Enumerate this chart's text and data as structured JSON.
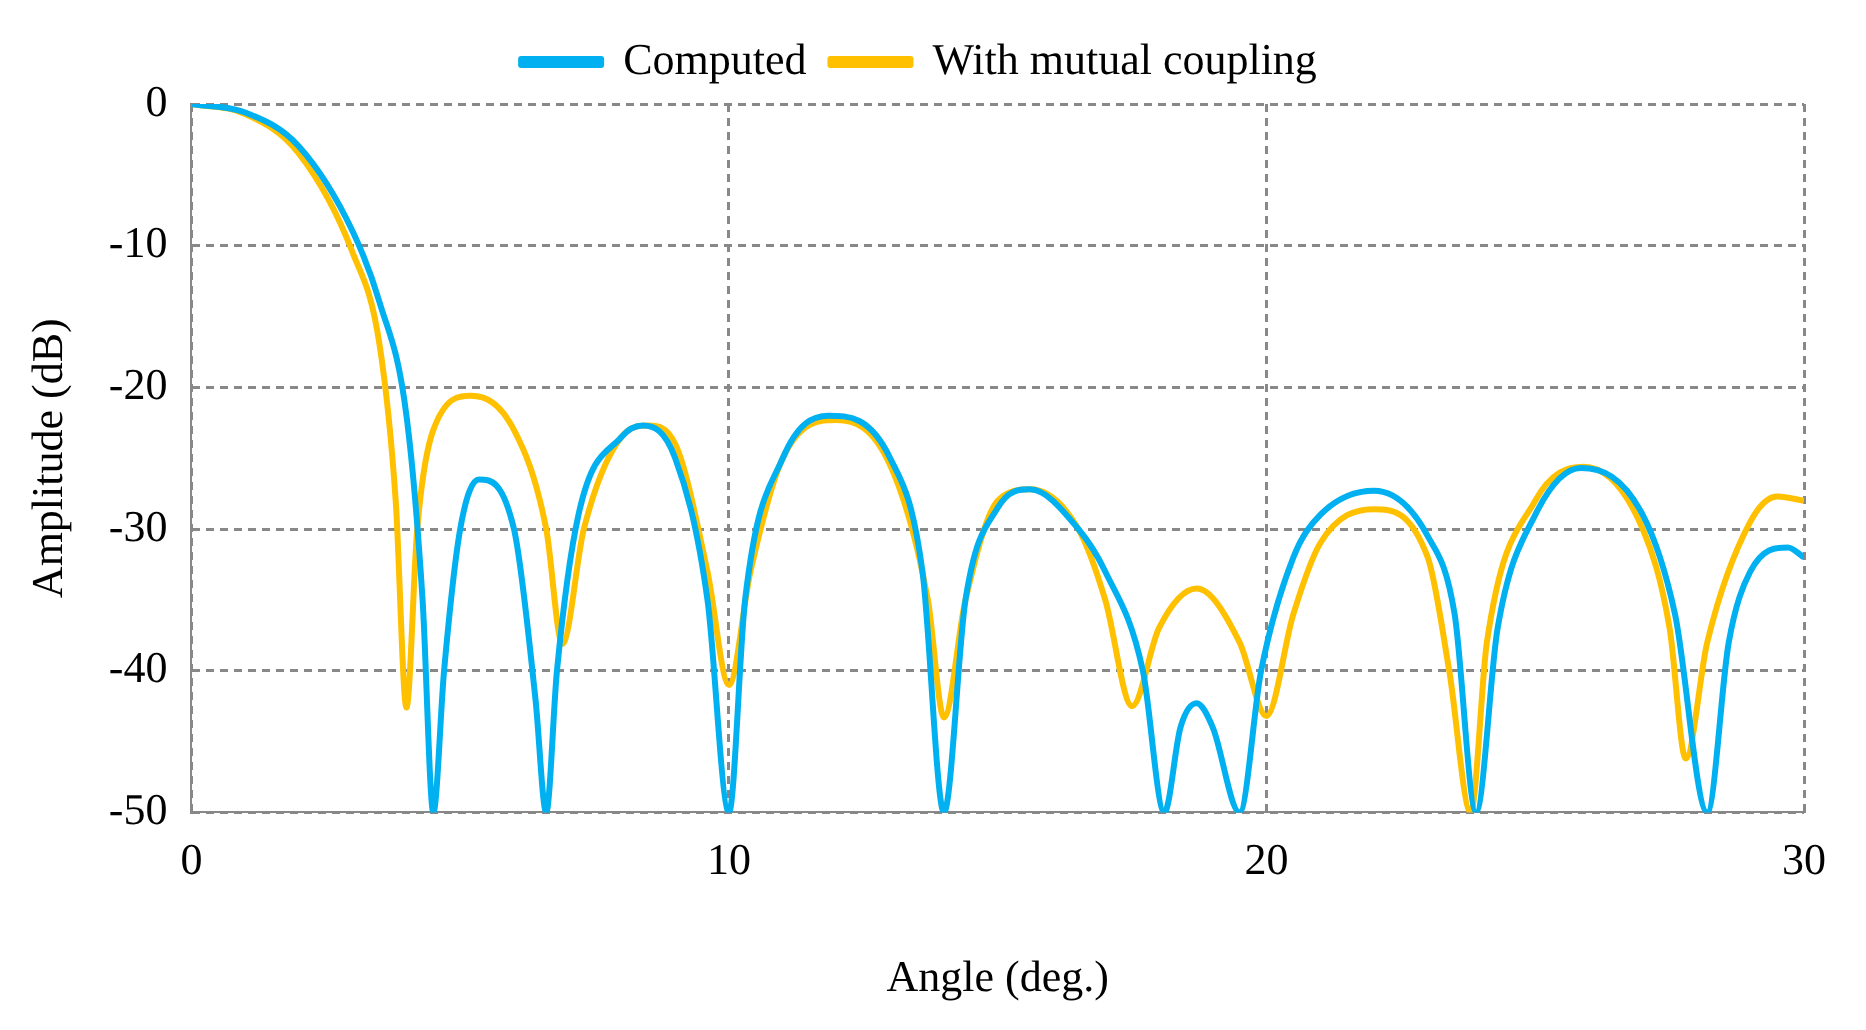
{
  "chart_data": {
    "type": "line",
    "xlabel": "Angle (deg.)",
    "ylabel": "Amplitude (dB)",
    "xlim": [
      0,
      30
    ],
    "xticks": [
      0,
      10,
      20,
      30
    ],
    "ylim": [
      -50,
      0
    ],
    "yticks": [
      -50,
      -40,
      -30,
      -20,
      -10,
      0
    ],
    "grid": true,
    "legend": "top",
    "marker": "none",
    "line_style": "solid",
    "series": [
      {
        "name": "Computed",
        "color": "#00b0f0",
        "x": [
          0,
          1,
          2,
          3,
          3.5,
          4,
          4.3,
          4.5,
          4.7,
          5,
          5.35,
          6,
          6.4,
          6.6,
          6.8,
          7.2,
          8,
          8.4,
          9,
          9.6,
          10,
          10.3,
          11,
          11.85,
          13,
          13.6,
          14,
          14.4,
          15,
          15.6,
          16.5,
          17,
          17.7,
          18.1,
          18.4,
          18.7,
          19,
          19.5,
          19.9,
          20.5,
          21,
          22,
          23,
          23.5,
          23.9,
          24.3,
          25,
          25.85,
          27,
          27.6,
          28.2,
          28.6,
          29,
          29.7,
          30
        ],
        "values": [
          0,
          -0.6,
          -3,
          -9,
          -14,
          -22,
          -35,
          -50,
          -40,
          -30,
          -26.5,
          -30,
          -42,
          -50,
          -40,
          -29,
          -23.5,
          -22.7,
          -25,
          -35,
          -50,
          -35,
          -25,
          -22,
          -25,
          -33,
          -50,
          -35,
          -28.5,
          -27.2,
          -30,
          -33,
          -40,
          -50,
          -44,
          -42.3,
          -44,
          -50,
          -40,
          -32,
          -29,
          -27.3,
          -30.5,
          -36,
          -50,
          -37,
          -29,
          -25.7,
          -29,
          -36,
          -50,
          -38,
          -33,
          -31.3,
          -32
        ]
      },
      {
        "name": "With mutual coupling",
        "color": "#ffc000",
        "x": [
          0,
          1,
          2,
          3,
          3.5,
          3.8,
          4,
          4.2,
          4.5,
          5.2,
          6,
          6.6,
          6.9,
          7.3,
          8,
          8.5,
          9,
          9.6,
          10,
          10.4,
          11,
          12,
          13,
          13.7,
          14,
          14.4,
          15,
          15.6,
          16.5,
          17,
          17.5,
          18,
          18.7,
          19.5,
          20,
          20.5,
          21,
          22,
          23,
          23.4,
          23.8,
          24.1,
          25,
          25.9,
          27,
          27.5,
          27.8,
          28.2,
          29,
          29.5,
          30
        ],
        "values": [
          0,
          -0.7,
          -3.5,
          -10.5,
          -17,
          -28,
          -42.6,
          -30,
          -23,
          -20.6,
          -23,
          -30,
          -38.1,
          -30,
          -23.5,
          -22.7,
          -24,
          -33,
          -41,
          -33,
          -25,
          -22.3,
          -25.5,
          -35,
          -43.3,
          -35,
          -28,
          -27.2,
          -30,
          -35,
          -42.5,
          -37,
          -34.2,
          -38,
          -43.2,
          -36,
          -31,
          -28.6,
          -32,
          -40,
          -50,
          -38,
          -28,
          -25.6,
          -30,
          -37,
          -46.2,
          -38,
          -29.5,
          -27.7,
          -28
        ]
      }
    ]
  }
}
